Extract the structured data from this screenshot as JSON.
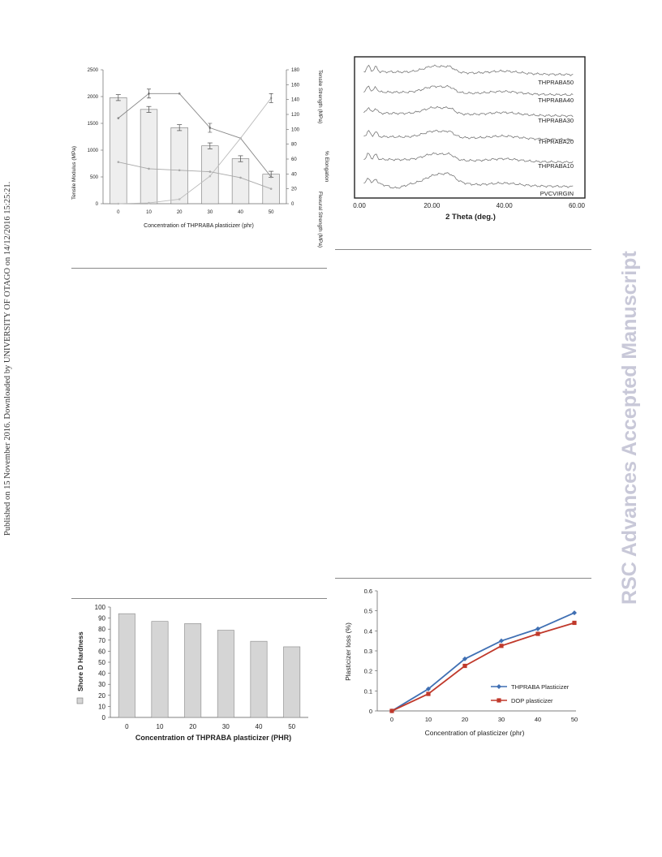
{
  "side_note": "Published on 15 November 2016. Downloaded by UNIVERSITY OF OTAGO on 14/12/2016 15:25:21.",
  "watermark": "RSC Advances Accepted Manuscript",
  "chart_data": [
    {
      "type": "bar",
      "categories": [
        "0",
        "10",
        "20",
        "30",
        "40",
        "50"
      ],
      "series": [
        {
          "name": "Tensile Modulus (MPa)",
          "values": [
            1980,
            1760,
            1420,
            1080,
            840,
            550
          ],
          "axis": "left"
        },
        {
          "name": "Tensile Strength (MPa)",
          "values": [
            115,
            148,
            148,
            102,
            88,
            36
          ],
          "axis": "right"
        },
        {
          "name": "% Elongation",
          "values": [
            0,
            1,
            6,
            37,
            88,
            142
          ],
          "axis": "right"
        },
        {
          "name": "Flexural Strength (MPa)",
          "values": [
            56,
            47,
            45,
            43,
            35,
            20
          ],
          "axis": "right"
        }
      ],
      "xlabel": "Concentration of THPRABA plasticizer (phr)",
      "ylabel": "Tensile Modulus (MPa)",
      "ylabel_right": "Tensile Strength (MPa)",
      "yticks_left": [
        "0",
        "500",
        "1000",
        "1500",
        "2000",
        "2500"
      ],
      "yticks_right": [
        "0",
        "20",
        "40",
        "60",
        "80",
        "100",
        "120",
        "140",
        "160",
        "180"
      ],
      "ylim": [
        0,
        2500
      ],
      "ylim_right": [
        0,
        180
      ]
    },
    {
      "type": "line",
      "x_range": [
        0,
        60
      ],
      "xticks": [
        "0.00",
        "20.00",
        "40.00",
        "60.00"
      ],
      "xlabel": "2 Theta (deg.)",
      "series": [
        {
          "name": "THPRABA50"
        },
        {
          "name": "THPRABA40"
        },
        {
          "name": "THPRABA30"
        },
        {
          "name": "THPRABA20"
        },
        {
          "name": "THPRABA10"
        },
        {
          "name": "PVCVIRGIN"
        }
      ]
    },
    {
      "type": "bar",
      "categories": [
        "0",
        "10",
        "20",
        "30",
        "40",
        "50"
      ],
      "values": [
        94,
        87,
        85,
        79,
        69,
        64
      ],
      "xlabel": "Concentration of THPRABA plasticizer (PHR)",
      "legend_label": "Shore D Hardness",
      "yticks": [
        "0",
        "10",
        "20",
        "30",
        "40",
        "50",
        "60",
        "70",
        "80",
        "90",
        "100"
      ],
      "ylim": [
        0,
        100
      ]
    },
    {
      "type": "line",
      "x": [
        "0",
        "10",
        "20",
        "30",
        "40",
        "50"
      ],
      "series": [
        {
          "name": "THPRABA Plasticizer",
          "values": [
            0,
            0.11,
            0.26,
            0.35,
            0.41,
            0.49
          ],
          "color": "#3f6fb3"
        },
        {
          "name": "DOP plasticizer",
          "values": [
            0,
            0.085,
            0.225,
            0.325,
            0.385,
            0.44
          ],
          "color": "#c0392b"
        }
      ],
      "xlabel": "Concentration of plasticizer (phr)",
      "ylabel": "Plasticizer loss (%)",
      "yticks": [
        "0",
        "0.1",
        "0.2",
        "0.3",
        "0.4",
        "0.5",
        "0.6"
      ],
      "ylim": [
        0,
        0.6
      ]
    }
  ]
}
